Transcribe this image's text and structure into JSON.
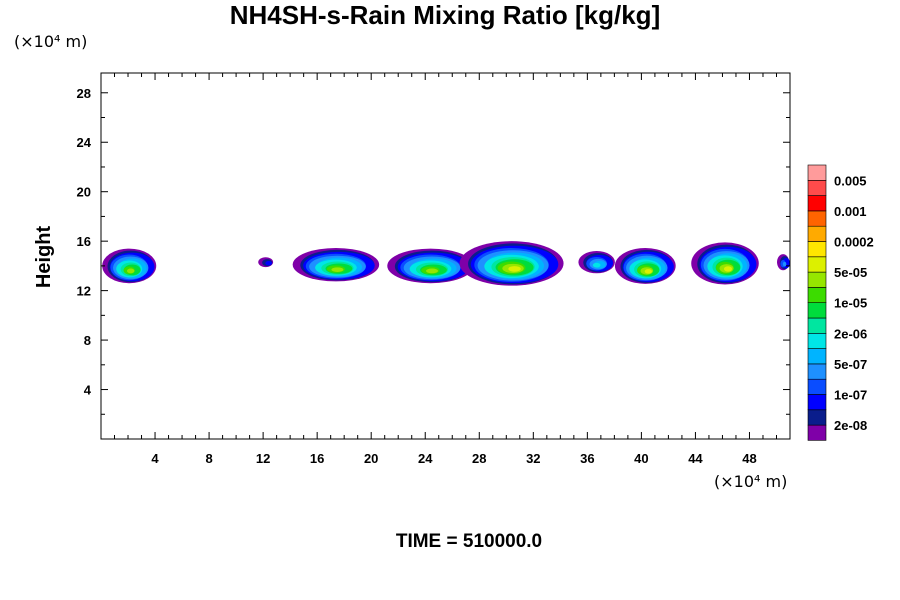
{
  "chart_data": {
    "type": "heatmap",
    "title": "NH4SH-s-Rain Mixing Ratio [kg/kg]",
    "xlabel": "",
    "ylabel": "Height",
    "x_unit": "(×10⁴ m)",
    "y_unit": "(×10⁴ m)",
    "xlim": [
      0,
      51
    ],
    "ylim": [
      0,
      29.6
    ],
    "x_ticks": [
      4,
      8,
      12,
      16,
      20,
      24,
      28,
      32,
      36,
      40,
      44,
      48
    ],
    "y_ticks": [
      4,
      8,
      12,
      16,
      20,
      24,
      28
    ],
    "colorbar": {
      "colors": [
        "#7f00a8",
        "#0a1d8c",
        "#0000ff",
        "#0a4dff",
        "#1e90ff",
        "#00b4ff",
        "#00e6e6",
        "#00e6a0",
        "#00dc3c",
        "#3cdc00",
        "#96e600",
        "#dcf000",
        "#ffe600",
        "#ffaa00",
        "#ff6400",
        "#ff0000",
        "#ff4b4b",
        "#ff9b9b"
      ],
      "labels": [
        "2e-08",
        "1e-07",
        "5e-07",
        "2e-06",
        "1e-05",
        "5e-05",
        "0.0002",
        "0.001",
        "0.005"
      ]
    },
    "cloud_regions": [
      {
        "x_center": 2.2,
        "height_center": 14.0,
        "x_extent": [
          0,
          4.0
        ],
        "height_extent": [
          12.8,
          15.6
        ],
        "peak_level": 10
      },
      {
        "x_center": 12.3,
        "height_center": 14.3,
        "x_extent": [
          11.8,
          12.9
        ],
        "height_extent": [
          13.9,
          14.7
        ],
        "peak_level": 2
      },
      {
        "x_center": 17.5,
        "height_center": 14.1,
        "x_extent": [
          13.8,
          20.2
        ],
        "height_extent": [
          12.8,
          15.5
        ],
        "peak_level": 10
      },
      {
        "x_center": 24.5,
        "height_center": 14.0,
        "x_extent": [
          21.2,
          27.6
        ],
        "height_extent": [
          12.6,
          15.4
        ],
        "peak_level": 10
      },
      {
        "x_center": 30.5,
        "height_center": 14.2,
        "x_extent": [
          26.8,
          34.5
        ],
        "height_extent": [
          12.4,
          16.0
        ],
        "peak_level": 11
      },
      {
        "x_center": 36.8,
        "height_center": 14.3,
        "x_extent": [
          35.1,
          37.8
        ],
        "height_extent": [
          13.4,
          15.2
        ],
        "peak_level": 6
      },
      {
        "x_center": 40.4,
        "height_center": 14.0,
        "x_extent": [
          38.3,
          42.8
        ],
        "height_extent": [
          12.5,
          15.4
        ],
        "peak_level": 11
      },
      {
        "x_center": 46.3,
        "height_center": 14.2,
        "x_extent": [
          44.0,
          49.0
        ],
        "height_extent": [
          12.5,
          15.9
        ],
        "peak_level": 11
      },
      {
        "x_center": 50.6,
        "height_center": 14.3,
        "x_extent": [
          50.1,
          51.0
        ],
        "height_extent": [
          13.6,
          14.9
        ],
        "peak_level": 4
      }
    ],
    "annotation": "TIME = 510000.0"
  }
}
